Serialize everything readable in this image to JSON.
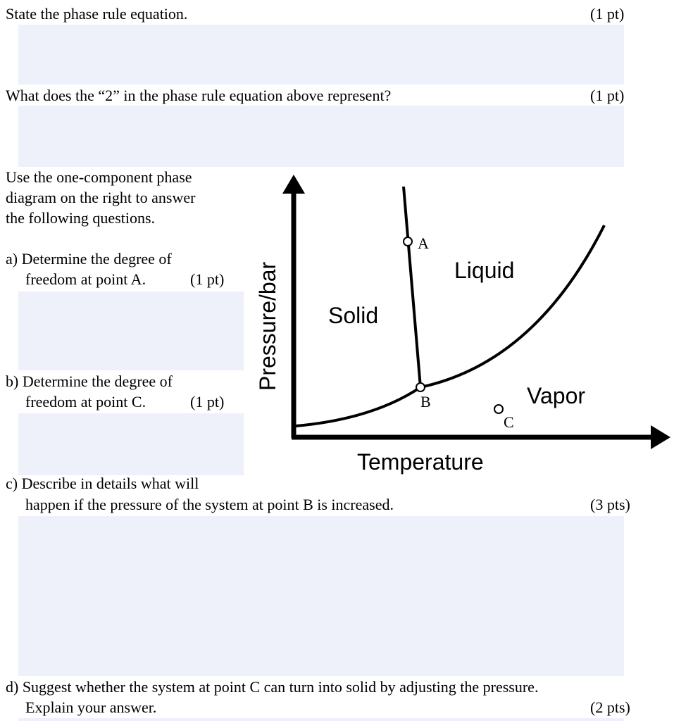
{
  "q1": {
    "text": "State the phase rule equation.",
    "points": "(1 pt)"
  },
  "q2": {
    "text": "What does the “2” in the phase rule equation above represent?",
    "points": "(1 pt)"
  },
  "intro": {
    "line1": "Use the one-component phase",
    "line2": "diagram on the right to answer",
    "line3": "the following questions."
  },
  "qa": {
    "line1": "a) Determine the degree of",
    "line2": "freedom at point A.",
    "points": "(1 pt)"
  },
  "qb": {
    "line1": "b) Determine the degree of",
    "line2": "freedom at point C.",
    "points": "(1 pt)"
  },
  "qc": {
    "line1": "c) Describe in details what will",
    "line2": "happen if the pressure of the system at point B is increased.",
    "points": "(3 pts)"
  },
  "qd": {
    "line1": "d) Suggest whether the system at point C can turn into solid by adjusting the pressure.",
    "line2": "Explain your answer.",
    "points": "(2 pts)"
  },
  "diagram": {
    "ylabel": "Pressure/bar",
    "xlabel": "Temperature",
    "regions": {
      "solid": "Solid",
      "liquid": "Liquid",
      "vapor": "Vapor"
    },
    "points": {
      "a": "A",
      "b": "B",
      "c": "C"
    }
  },
  "colors": {
    "answer_box": "#eef1fa"
  }
}
